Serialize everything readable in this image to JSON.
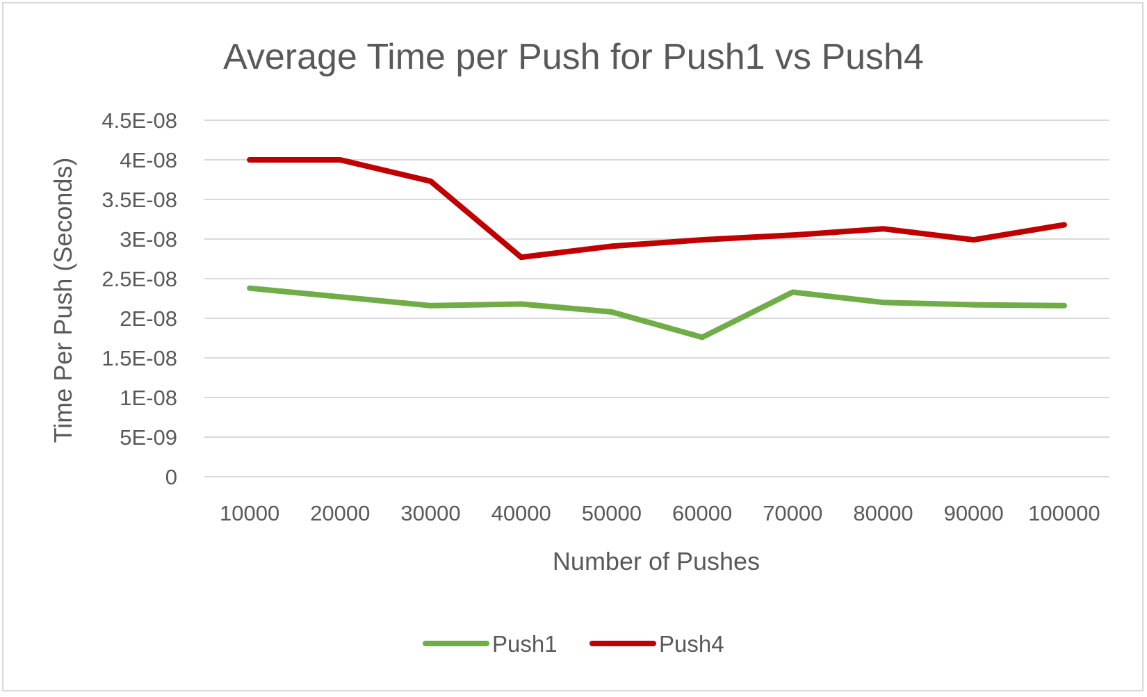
{
  "chart_data": {
    "type": "line",
    "title": "Average Time per Push for Push1 vs Push4",
    "xlabel": "Number of Pushes",
    "ylabel": "Time Per Push (Seconds)",
    "categories": [
      "10000",
      "20000",
      "30000",
      "40000",
      "50000",
      "60000",
      "70000",
      "80000",
      "90000",
      "100000"
    ],
    "ylim": [
      0,
      4.5e-08
    ],
    "yticks": [
      0,
      5e-09,
      1e-08,
      1.5e-08,
      2e-08,
      2.5e-08,
      3e-08,
      3.5e-08,
      4e-08,
      4.5e-08
    ],
    "ytick_labels": [
      "0",
      "5E-09",
      "1E-08",
      "1.5E-08",
      "2E-08",
      "2.5E-08",
      "3E-08",
      "3.5E-08",
      "4E-08",
      "4.5E-08"
    ],
    "grid": true,
    "legend_position": "bottom",
    "series": [
      {
        "name": "Push1",
        "color": "#70ad47",
        "values": [
          2.38e-08,
          2.27e-08,
          2.16e-08,
          2.18e-08,
          2.08e-08,
          1.76e-08,
          2.33e-08,
          2.2e-08,
          2.17e-08,
          2.16e-08
        ]
      },
      {
        "name": "Push4",
        "color": "#c00000",
        "values": [
          4e-08,
          4e-08,
          3.73e-08,
          2.77e-08,
          2.91e-08,
          2.99e-08,
          3.05e-08,
          3.13e-08,
          2.99e-08,
          3.18e-08
        ]
      }
    ]
  }
}
